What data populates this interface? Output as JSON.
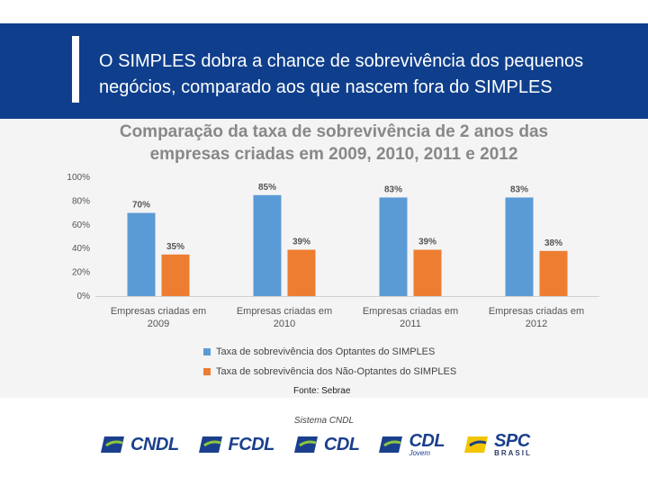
{
  "header": {
    "title_line1": "O SIMPLES dobra a chance de sobrevivência dos pequenos",
    "title_line2": "negócios, comparado aos que nascem fora do SIMPLES"
  },
  "chart_data": {
    "type": "bar",
    "title_line1": "Comparação da taxa de sobrevivência de 2 anos das",
    "title_line2": "empresas criadas em 2009, 2010, 2011 e 2012",
    "categories": [
      [
        "Empresas criadas em",
        "2009"
      ],
      [
        "Empresas criadas em",
        "2010"
      ],
      [
        "Empresas criadas em",
        "2011"
      ],
      [
        "Empresas criadas em",
        "2012"
      ]
    ],
    "series": [
      {
        "name": "Taxa de sobrevivência dos Optantes do SIMPLES",
        "values": [
          70,
          85,
          83,
          83
        ],
        "color": "#5b9bd5"
      },
      {
        "name": "Taxa de sobrevivência dos Não-Optantes do SIMPLES",
        "values": [
          35,
          39,
          39,
          38
        ],
        "color": "#ed7d31"
      }
    ],
    "yticks": [
      "0%",
      "20%",
      "40%",
      "60%",
      "80%",
      "100%"
    ],
    "ylim": [
      0,
      100
    ],
    "value_suffix": "%",
    "legend_position": "bottom",
    "grid": false
  },
  "source": "Fonte: Sebrae",
  "footer": {
    "subtitle": "Sistema CNDL",
    "logos": [
      {
        "name": "CNDL",
        "icon": "cndl-logo-icon"
      },
      {
        "name": "FCDL",
        "icon": "fcdl-logo-icon"
      },
      {
        "name": "CDL",
        "icon": "cdl-logo-icon"
      },
      {
        "name": "CDL",
        "sub": "Jovem",
        "icon": "cdl-jovem-logo-icon"
      },
      {
        "name": "SPC",
        "sub": "BRASIL",
        "icon": "spc-brasil-logo-icon"
      }
    ]
  }
}
